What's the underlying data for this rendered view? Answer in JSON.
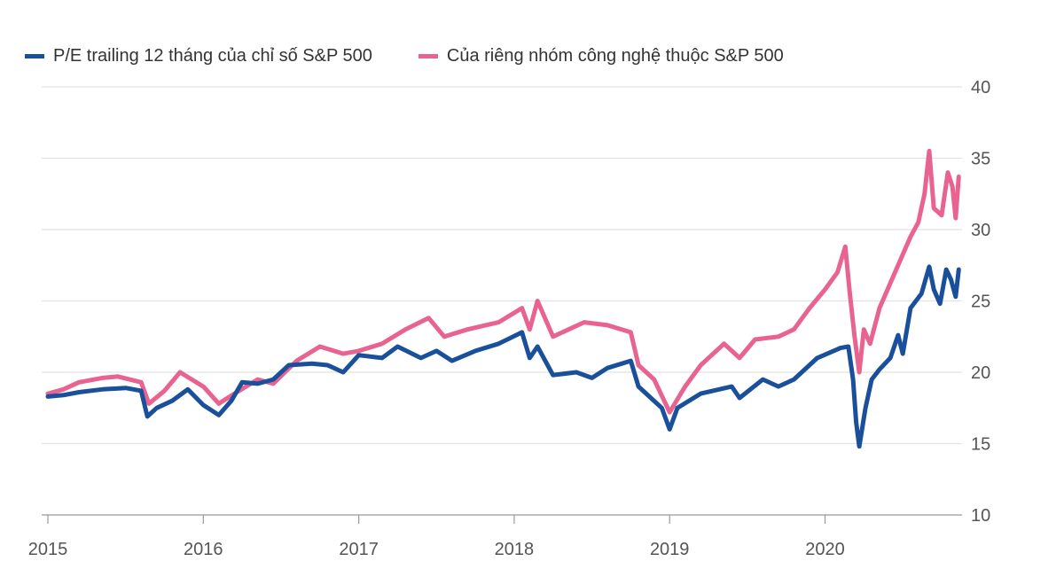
{
  "chart_data": {
    "type": "line",
    "title": "",
    "xlabel": "",
    "ylabel": "",
    "xlim": [
      2015,
      2021
    ],
    "ylim": [
      10,
      40
    ],
    "x_ticks": [
      "2015",
      "2016",
      "2017",
      "2018",
      "2019",
      "2020"
    ],
    "y_ticks": [
      "10",
      "15",
      "20",
      "25",
      "30",
      "35",
      "40"
    ],
    "grid": true,
    "legend_position": "top-left",
    "series": [
      {
        "name": "P/E trailing 12 tháng của chỉ số S&P 500",
        "color": "#1a4f9c",
        "x": [
          2015.0,
          2015.1,
          2015.2,
          2015.35,
          2015.5,
          2015.6,
          2015.64,
          2015.7,
          2015.8,
          2015.9,
          2016.0,
          2016.1,
          2016.18,
          2016.25,
          2016.35,
          2016.45,
          2016.55,
          2016.7,
          2016.8,
          2016.9,
          2017.0,
          2017.15,
          2017.25,
          2017.4,
          2017.5,
          2017.6,
          2017.75,
          2017.9,
          2018.05,
          2018.1,
          2018.15,
          2018.25,
          2018.4,
          2018.5,
          2018.6,
          2018.75,
          2018.8,
          2018.95,
          2019.0,
          2019.05,
          2019.2,
          2019.4,
          2019.45,
          2019.6,
          2019.7,
          2019.8,
          2019.95,
          2020.1,
          2020.15,
          2020.18,
          2020.2,
          2020.22,
          2020.26,
          2020.3,
          2020.35,
          2020.42,
          2020.47,
          2020.5,
          2020.55,
          2020.62,
          2020.67,
          2020.7,
          2020.74,
          2020.78,
          2020.81,
          2020.84,
          2020.86
        ],
        "y": [
          18.3,
          18.4,
          18.6,
          18.8,
          18.9,
          18.7,
          16.9,
          17.5,
          18.0,
          18.8,
          17.7,
          17.0,
          18.0,
          19.3,
          19.2,
          19.5,
          20.5,
          20.6,
          20.5,
          20.0,
          21.2,
          21.0,
          21.8,
          21.0,
          21.5,
          20.8,
          21.5,
          22.0,
          22.8,
          21.0,
          21.8,
          19.8,
          20.0,
          19.6,
          20.3,
          20.8,
          19.0,
          17.5,
          16.0,
          17.5,
          18.5,
          19.0,
          18.2,
          19.5,
          19.0,
          19.5,
          21.0,
          21.7,
          21.8,
          19.5,
          16.5,
          14.8,
          17.5,
          19.5,
          20.2,
          21.0,
          22.6,
          21.3,
          24.5,
          25.5,
          27.4,
          25.8,
          24.8,
          27.2,
          26.5,
          25.3,
          27.2
        ]
      },
      {
        "name": "Của riêng nhóm công nghệ thuộc S&P 500",
        "color": "#e8638f",
        "x": [
          2015.0,
          2015.1,
          2015.2,
          2015.35,
          2015.45,
          2015.6,
          2015.65,
          2015.75,
          2015.85,
          2016.0,
          2016.1,
          2016.2,
          2016.35,
          2016.45,
          2016.6,
          2016.75,
          2016.9,
          2017.0,
          2017.15,
          2017.3,
          2017.45,
          2017.55,
          2017.7,
          2017.9,
          2018.05,
          2018.1,
          2018.15,
          2018.25,
          2018.35,
          2018.45,
          2018.6,
          2018.75,
          2018.8,
          2018.9,
          2019.0,
          2019.1,
          2019.2,
          2019.35,
          2019.45,
          2019.55,
          2019.7,
          2019.8,
          2019.9,
          2020.0,
          2020.08,
          2020.13,
          2020.16,
          2020.19,
          2020.22,
          2020.25,
          2020.29,
          2020.35,
          2020.45,
          2020.55,
          2020.6,
          2020.64,
          2020.67,
          2020.7,
          2020.75,
          2020.79,
          2020.82,
          2020.84,
          2020.86
        ],
        "y": [
          18.5,
          18.8,
          19.3,
          19.6,
          19.7,
          19.3,
          17.8,
          18.7,
          20.0,
          19.0,
          17.8,
          18.5,
          19.5,
          19.2,
          20.8,
          21.8,
          21.3,
          21.5,
          22.0,
          23.0,
          23.8,
          22.5,
          23.0,
          23.5,
          24.5,
          23.0,
          25.0,
          22.5,
          23.0,
          23.5,
          23.3,
          22.8,
          20.5,
          19.5,
          17.2,
          19.0,
          20.5,
          22.0,
          21.0,
          22.3,
          22.5,
          23.0,
          24.5,
          25.8,
          27.0,
          28.8,
          25.5,
          22.5,
          20.0,
          23.0,
          22.0,
          24.5,
          27.0,
          29.5,
          30.5,
          32.5,
          35.5,
          31.5,
          31.0,
          34.0,
          33.0,
          30.8,
          33.7
        ]
      }
    ]
  }
}
